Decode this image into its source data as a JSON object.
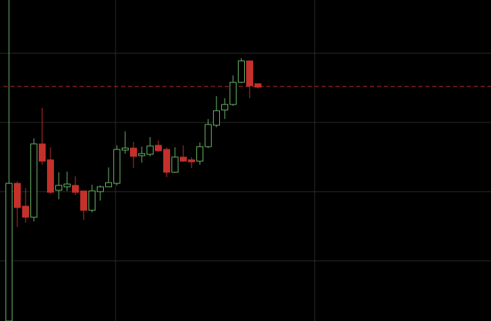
{
  "chart_data": {
    "type": "candlestick",
    "open": [
      0,
      199,
      166,
      150,
      256,
      233,
      189,
      194,
      196,
      188,
      160,
      187,
      194,
      199,
      247,
      250,
      239,
      241,
      254,
      248,
      215,
      237,
      233,
      231,
      252,
      283,
      305,
      313,
      345,
      376,
      343
    ],
    "high": [
      464,
      202,
      192,
      264,
      308,
      251,
      215,
      216,
      209,
      188,
      197,
      196,
      222,
      254,
      274,
      259,
      252,
      266,
      261,
      251,
      251,
      254,
      237,
      258,
      292,
      325,
      322,
      355,
      380,
      376,
      343
    ],
    "low": [
      0,
      136,
      142,
      144,
      226,
      184,
      176,
      188,
      182,
      146,
      157,
      174,
      194,
      196,
      242,
      221,
      229,
      238,
      244,
      208,
      214,
      230,
      221,
      226,
      250,
      280,
      292,
      311,
      344,
      322,
      336
    ],
    "close": [
      199,
      164,
      150,
      256,
      231,
      186,
      196,
      198,
      186,
      160,
      188,
      194,
      200,
      248,
      250,
      238,
      242,
      253,
      246,
      215,
      237,
      231,
      230,
      252,
      284,
      304,
      313,
      345,
      376,
      340,
      338
    ],
    "up_color": "#6dbb6a",
    "down_color": "#c4302b",
    "price_line": 339,
    "price_line_color": "#c4302b",
    "ylim": [
      0,
      464
    ],
    "yticks": [
      87,
      187,
      287,
      387
    ],
    "grid": true
  }
}
